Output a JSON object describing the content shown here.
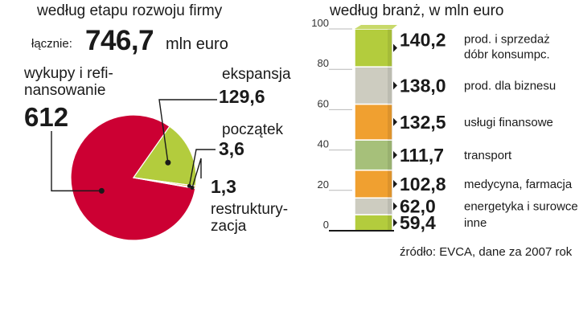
{
  "left_heading": "według etapu rozwoju firmy",
  "right_heading": "według branż, w mln euro",
  "total": {
    "label": "łącznie:",
    "value": "746,7",
    "unit": "mln euro"
  },
  "source": "źródło: EVCA, dane za 2007 rok",
  "chart_data": [
    {
      "type": "pie",
      "slices": [
        {
          "name_lines": [
            "wykupy i refi-",
            "nansowanie"
          ],
          "value": 612,
          "value_label": "612",
          "color": "#cc0033"
        },
        {
          "name_lines": [
            "ekspansja"
          ],
          "value": 129.6,
          "value_label": "129,6",
          "color": "#b3cc3d"
        },
        {
          "name_lines": [
            "początek"
          ],
          "value": 3.6,
          "value_label": "3,6",
          "color": "#f0a030"
        },
        {
          "name_lines": [
            "restruktury-",
            "zacja"
          ],
          "value": 1.3,
          "value_label": "1,3",
          "color": "#d8d2bd"
        }
      ]
    },
    {
      "type": "bar",
      "stacked": true,
      "ylim": [
        0,
        100
      ],
      "yticks": [
        "0",
        "20",
        "40",
        "60",
        "80",
        "100"
      ],
      "segments": [
        {
          "category": "inne",
          "value": 59.4,
          "value_label": "59,4",
          "color": "#b3cc3d"
        },
        {
          "category": "energetyka i surowce",
          "value": 62.0,
          "value_label": "62,0",
          "color": "#cdccc0"
        },
        {
          "category": "medycyna, farmacja",
          "value": 102.8,
          "value_label": "102,8",
          "color": "#f0a030"
        },
        {
          "category": "transport",
          "value": 111.7,
          "value_label": "111,7",
          "color": "#a6c07a"
        },
        {
          "category": "usługi finansowe",
          "value": 132.5,
          "value_label": "132,5",
          "color": "#f0a030"
        },
        {
          "category": "prod. dla biznesu",
          "value": 138.0,
          "value_label": "138,0",
          "color": "#cdccc0"
        },
        {
          "category": "prod. i sprzedaż dóbr konsumpc.",
          "category_lines": [
            "prod. i sprzedaż",
            "dóbr konsumpc."
          ],
          "value": 140.2,
          "value_label": "140,2",
          "color": "#b3cc3d"
        }
      ]
    }
  ]
}
